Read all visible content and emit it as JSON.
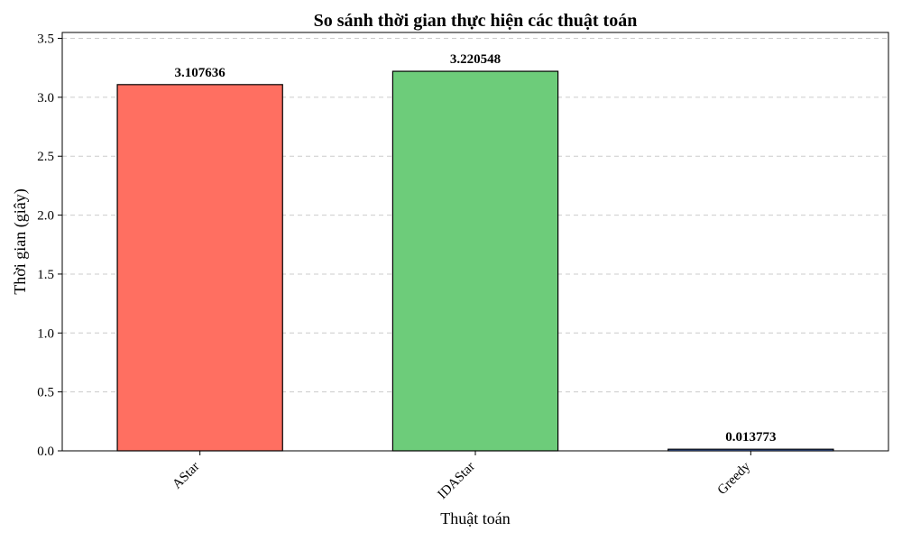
{
  "chart_data": {
    "type": "bar",
    "title": "So sánh thời gian thực hiện các thuật toán",
    "xlabel": "Thuật toán",
    "ylabel": "Thời gian (giây)",
    "categories": [
      "AStar",
      "IDAStar",
      "Greedy"
    ],
    "values": [
      3.107636,
      3.220548,
      0.013773
    ],
    "value_labels": [
      "3.107636",
      "3.220548",
      "0.013773"
    ],
    "colors": [
      "#ff6f61",
      "#6dcc7a",
      "#5b8ff9"
    ],
    "ylim": [
      0,
      3.55
    ],
    "yticks": [
      0.0,
      0.5,
      1.0,
      1.5,
      2.0,
      2.5,
      3.0,
      3.5
    ],
    "ytick_labels": [
      "0.0",
      "0.5",
      "1.0",
      "1.5",
      "2.0",
      "2.5",
      "3.0",
      "3.5"
    ],
    "grid": "y-dashed",
    "legend": "none"
  }
}
